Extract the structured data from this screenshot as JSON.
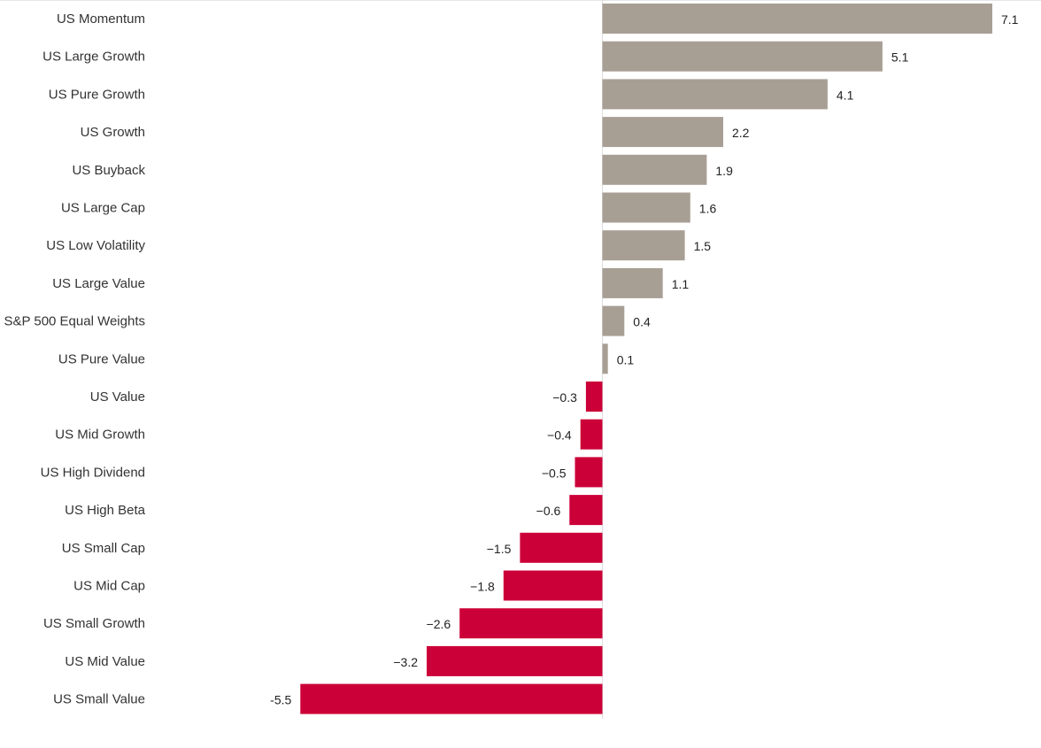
{
  "chart_data": {
    "type": "bar",
    "orientation": "horizontal",
    "categories": [
      "US Momentum",
      "US Large Growth",
      "US Pure Growth",
      "US Growth",
      "US Buyback",
      "US Large Cap",
      "US Low Volatility",
      "US Large Value",
      "S&P 500 Equal Weights",
      "US Pure Value",
      "US Value",
      "US Mid Growth",
      "US High Dividend",
      "US High Beta",
      "US Small Cap",
      "US Mid Cap",
      "US Small Growth",
      "US Mid Value",
      "US Small Value"
    ],
    "values": [
      7.1,
      5.1,
      4.1,
      2.2,
      1.9,
      1.6,
      1.5,
      1.1,
      0.4,
      0.1,
      -0.3,
      -0.4,
      -0.5,
      -0.6,
      -1.5,
      -1.8,
      -2.6,
      -3.2,
      -5.5
    ],
    "value_labels": [
      "7.1",
      "5.1",
      "4.1",
      "2.2",
      "1.9",
      "1.6",
      "1.5",
      "1.1",
      "0.4",
      "0.1",
      "−0.3",
      "−0.4",
      "−0.5",
      "−0.6",
      "−1.5",
      "−1.8",
      "−2.6",
      "−3.2",
      "-5.5"
    ],
    "title": "",
    "xlabel": "",
    "ylabel": "",
    "xlim": [
      -5.5,
      7.1
    ],
    "grid": false,
    "legend": "none",
    "colors": {
      "positive": "#a89f94",
      "negative": "#cc0038",
      "axis": "#dddddd"
    }
  }
}
